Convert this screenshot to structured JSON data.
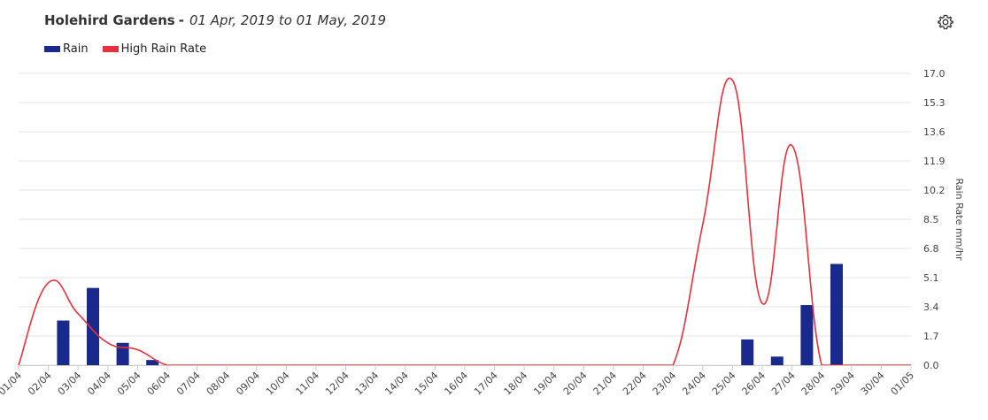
{
  "header": {
    "station": "Holehird Gardens",
    "separator": "-",
    "range": "01 Apr, 2019 to 01 May, 2019"
  },
  "icons": {
    "settings": "gear-icon"
  },
  "colors": {
    "rain": "#1a2a8c",
    "high_rain_rate": "#e8303d",
    "grid": "#e6e6e6",
    "axis": "#cccccc"
  },
  "legend": [
    {
      "label": "Rain",
      "color": "#1a2a8c"
    },
    {
      "label": "High Rain Rate",
      "color": "#e8303d"
    }
  ],
  "chart_data": {
    "type": "bar",
    "categories": [
      "01/04",
      "02/04",
      "03/04",
      "04/04",
      "05/04",
      "06/04",
      "07/04",
      "08/04",
      "09/04",
      "10/04",
      "11/04",
      "12/04",
      "13/04",
      "14/04",
      "15/04",
      "16/04",
      "17/04",
      "18/04",
      "19/04",
      "20/04",
      "21/04",
      "22/04",
      "23/04",
      "24/04",
      "25/04",
      "26/04",
      "27/04",
      "28/04",
      "29/04",
      "30/04",
      "01/05"
    ],
    "series": [
      {
        "name": "Rain",
        "type": "bar",
        "values": [
          0,
          2.6,
          4.5,
          1.3,
          0.3,
          0,
          0,
          0,
          0,
          0,
          0,
          0,
          0,
          0,
          0,
          0,
          0,
          0,
          0,
          0,
          0,
          0,
          0,
          0,
          1.5,
          0.5,
          3.5,
          5.9,
          0,
          0,
          0
        ]
      },
      {
        "name": "High Rain Rate",
        "type": "line",
        "values": [
          0,
          4.8,
          3.0,
          1.3,
          0.9,
          0,
          0,
          0,
          0,
          0,
          0,
          0,
          0,
          0,
          0,
          0,
          0,
          0,
          0,
          0,
          0,
          0,
          0,
          8.2,
          16.6,
          3.6,
          12.8,
          0,
          0,
          0,
          0
        ]
      }
    ],
    "yaxis": {
      "label": "Rain Rate mm/hr",
      "position": "right",
      "ticks": [
        "0.0",
        "1.7",
        "3.4",
        "5.1",
        "6.8",
        "8.5",
        "10.2",
        "11.9",
        "13.6",
        "15.3",
        "17.0"
      ],
      "ylim": [
        0,
        17.0
      ]
    },
    "grid": true,
    "legend_position": "top-left"
  }
}
